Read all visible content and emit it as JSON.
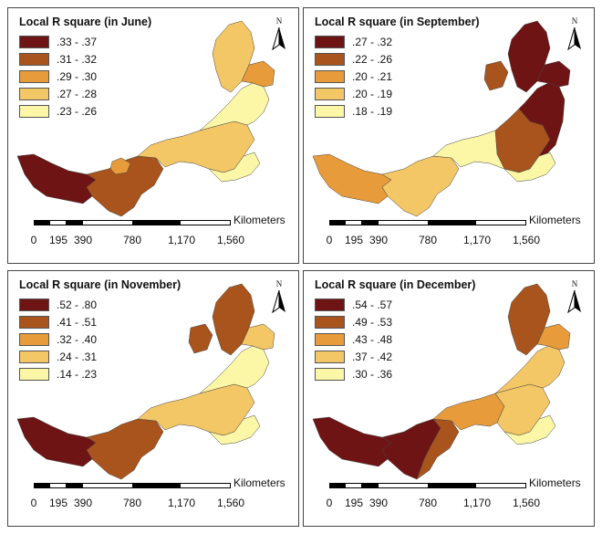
{
  "units": "Kilometers",
  "scale_ticks": [
    "0",
    "195",
    "390",
    "780",
    "1,170",
    "1,560"
  ],
  "north_label": "N",
  "panels": [
    {
      "title": "Local R square (in June)",
      "legend": [
        {
          "range": ".33 - .37",
          "color": "#6e1414"
        },
        {
          "range": ".31 - .32",
          "color": "#a8541c"
        },
        {
          "range": ".29 - .30",
          "color": "#e89b3a"
        },
        {
          "range": ".27 - .28",
          "color": "#f4c766"
        },
        {
          "range": ".23 - .26",
          "color": "#fbf7a6"
        }
      ]
    },
    {
      "title": "Local R square (in September)",
      "legend": [
        {
          "range": ".27 - .32",
          "color": "#6e1414"
        },
        {
          "range": ".22 - .26",
          "color": "#a8541c"
        },
        {
          "range": ".20 - .21",
          "color": "#e89b3a"
        },
        {
          "range": ".20 - .19",
          "color": "#f4c766"
        },
        {
          "range": ".18 - .19",
          "color": "#fbf7a6"
        }
      ]
    },
    {
      "title": "Local R square (in November)",
      "legend": [
        {
          "range": ".52 - .80",
          "color": "#6e1414"
        },
        {
          "range": ".41 - .51",
          "color": "#a8541c"
        },
        {
          "range": ".32 - .40",
          "color": "#e89b3a"
        },
        {
          "range": ".24 - .31",
          "color": "#f4c766"
        },
        {
          "range": ".14 - .23",
          "color": "#fbf7a6"
        }
      ]
    },
    {
      "title": "Local R square (in December)",
      "legend": [
        {
          "range": ".54 - .57",
          "color": "#6e1414"
        },
        {
          "range": ".49 - .53",
          "color": "#a8541c"
        },
        {
          "range": ".43 - .48",
          "color": "#e89b3a"
        },
        {
          "range": ".37 - .42",
          "color": "#f4c766"
        },
        {
          "range": ".30 - .36",
          "color": "#fbf7a6"
        }
      ]
    }
  ]
}
